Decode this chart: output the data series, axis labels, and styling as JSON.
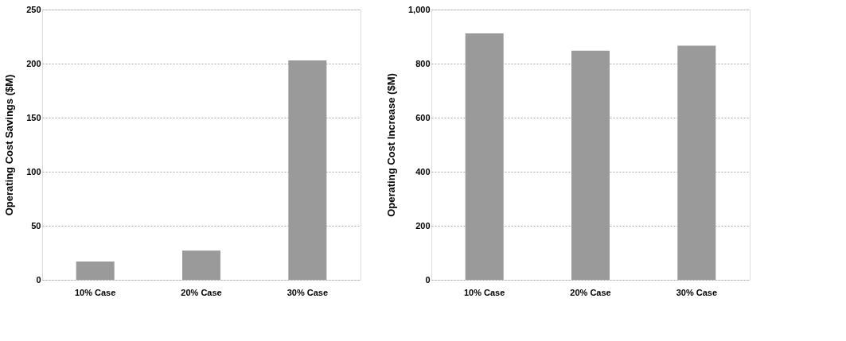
{
  "chart_data": [
    {
      "type": "bar",
      "ylabel": "Operating Cost Savings ($M)",
      "categories": [
        "10% Case",
        "20% Case",
        "30% Case"
      ],
      "values": [
        17,
        27,
        203
      ],
      "color": "#9a9a9a",
      "ylim": [
        0,
        250
      ],
      "yticks": [
        0,
        50,
        100,
        150,
        200,
        250
      ],
      "grid": "y"
    },
    {
      "type": "bar",
      "ylabel": "Operating Cost Increase ($M)",
      "categories": [
        "10% Case",
        "20% Case",
        "30% Case"
      ],
      "values": [
        912,
        848,
        866
      ],
      "color": "#9a9a9a",
      "ylim": [
        0,
        1000
      ],
      "yticks": [
        0,
        200,
        400,
        600,
        800,
        {
          "value": 1000,
          "label": "1,000"
        }
      ],
      "grid": "y"
    }
  ]
}
